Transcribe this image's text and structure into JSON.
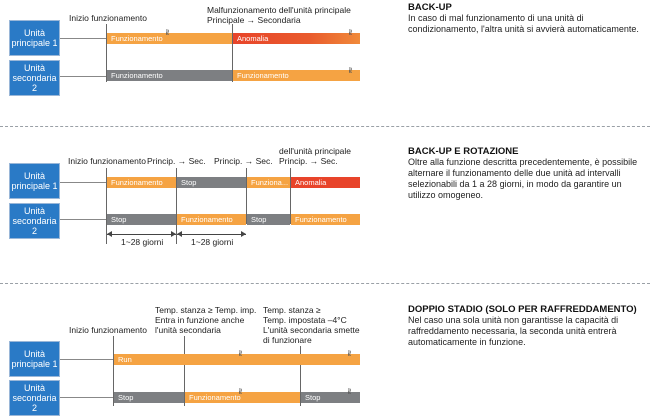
{
  "sections": [
    {
      "title": "BACK-UP",
      "description": "In caso di mal funzionamento di una unità di condizionamento, l'altra unità si avvierà automaticamente.",
      "units": {
        "main": "Unità principale 1",
        "secondary": "Unità secondaria 2"
      },
      "labels": {
        "start": "Inizio funzionamento",
        "malf": "Malfunzionamento dell'unità principale",
        "malf_switch": "Principale → Secondaria"
      },
      "segments": {
        "main_1": "Funzionamento",
        "main_2": "Anomalia",
        "sec_1": "Funzionamento",
        "sec_2": "Funzionamento"
      }
    },
    {
      "title": "BACK-UP E ROTAZIONE",
      "description": "Oltre alla funzione descritta precedentemente, è possibile alternare il funzionamento delle due unità ad intervalli selezionabili da 1 a 28 giorni, in modo da garantire un utilizzo omogeneo.",
      "units": {
        "main": "Unità principale 1",
        "secondary": "Unità secondaria 2"
      },
      "labels": {
        "start": "Inizio funzionamento",
        "switch1": "Princip. → Sec.",
        "switch2": "Princip. → Sec.",
        "malf": "dell'unità principale",
        "malf_switch": "Princip. → Sec.",
        "interval1": "1~28 giorni",
        "interval2": "1~28 giorni"
      },
      "segments": {
        "main_1": "Funzionamento",
        "main_2": "Stop",
        "main_3": "Funziona...",
        "main_4": "Anomalia",
        "sec_1": "Stop",
        "sec_2": "Funzionamento",
        "sec_3": "Stop",
        "sec_4": "Funzionamento"
      }
    },
    {
      "title": "DOPPIO STADIO (SOLO PER RAFFREDDAMENTO)",
      "description": "Nel caso una sola unità non garantisse la capacità di raffreddamento necessaria, la seconda unità entrerà automaticamente in funzione.",
      "units": {
        "main": "Unità principale 1",
        "secondary": "Unità secondaria 2"
      },
      "labels": {
        "start": "Inizio funzionamento",
        "temp_up": "Temp. stanza ≥ Temp. imp.",
        "temp_up_2": "Entra in funzione anche",
        "temp_up_3": "l'unità secondaria",
        "temp_down": "Temp. stanza ≥",
        "temp_down_2": "Temp. impostata –4°C",
        "temp_down_3": "L'unità secondaria smette",
        "temp_down_4": "di funzionare"
      },
      "segments": {
        "main_1": "Run",
        "sec_1": "Stop",
        "sec_2": "Funzionamento",
        "sec_3": "Stop"
      }
    }
  ]
}
